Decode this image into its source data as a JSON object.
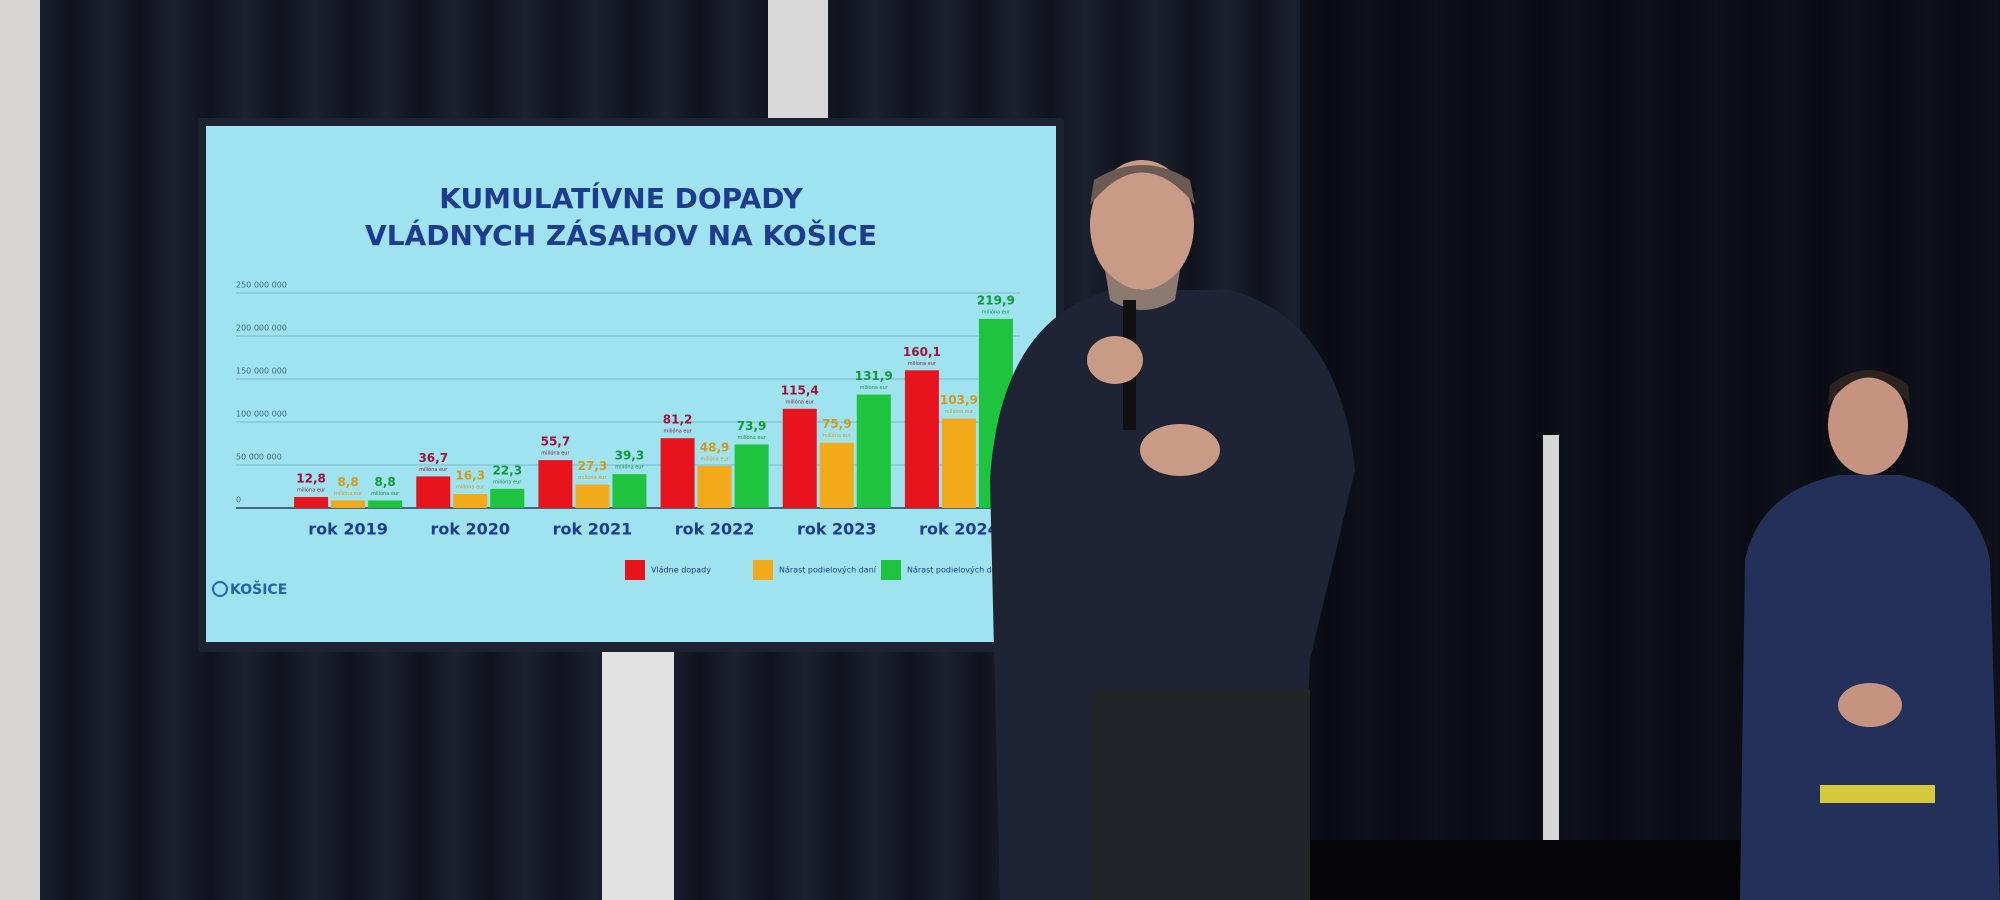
{
  "chart_data": {
    "type": "bar",
    "title": [
      "KUMULATÍVNE DOPADY",
      "VLÁDNYCH ZÁSAHOV NA KOŠICE"
    ],
    "logo": "KOŠICE",
    "value_unit": "milióna eur",
    "categories": [
      "rok 2019",
      "rok 2020",
      "rok 2021",
      "rok 2022",
      "rok 2023",
      "rok 2024"
    ],
    "series": [
      {
        "name": "Vládne dopady",
        "color": "#e8141d",
        "label_color": "#a3123a",
        "values": [
          12800000,
          36700000,
          55700000,
          81200000,
          115400000,
          160100000
        ],
        "value_labels": [
          "12,8",
          "36,7",
          "55,7",
          "81,2",
          "115,4",
          "160,1"
        ]
      },
      {
        "name": "Nárast podielových daní",
        "color": "#f2a91a",
        "label_color": "#d39a22",
        "values": [
          8800000,
          16300000,
          27300000,
          48900000,
          75900000,
          103900000
        ],
        "value_labels": [
          "8,8",
          "16,3",
          "27,3",
          "48,9",
          "75,9",
          "103,9"
        ]
      },
      {
        "name": "Nárast podielových daní bez zásahov vlády",
        "color": "#1ec43e",
        "label_color": "#0f9a3c",
        "values": [
          8800000,
          22300000,
          39300000,
          73900000,
          131900000,
          219900000
        ],
        "value_labels": [
          "8,8",
          "22,3",
          "39,3",
          "73,9",
          "131,9",
          "219,9"
        ]
      }
    ],
    "ylim": [
      0,
      250000000
    ],
    "yticks": [
      0,
      {
        "value": 50000000,
        "label": "50 000 000"
      },
      {
        "value": 100000000,
        "label": "100 000 000"
      },
      {
        "value": 150000000,
        "label": "150 000 000"
      },
      {
        "value": 200000000,
        "label": "200 000 000"
      },
      {
        "value": 250000000,
        "label": "250 000 000"
      }
    ],
    "grid": true
  }
}
